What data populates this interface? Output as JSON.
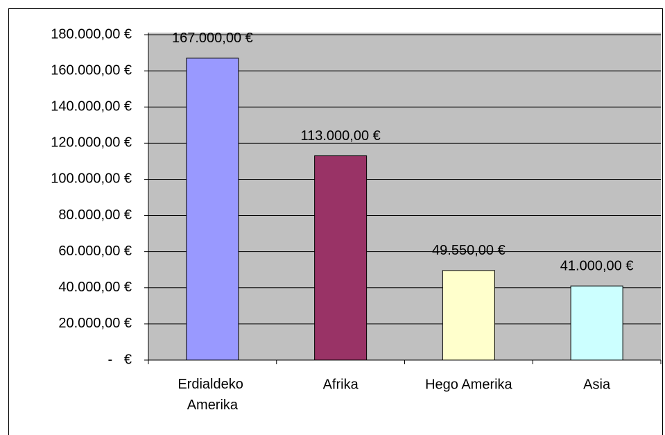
{
  "chart_data": {
    "type": "bar",
    "categories": [
      "Erdialdeko Amerika",
      "Afrika",
      "Hego Amerika",
      "Asia"
    ],
    "values": [
      167000,
      113000,
      49550,
      41000
    ],
    "value_labels": [
      "167.000,00 €",
      "113.000,00 €",
      "49.550,00 €",
      "41.000,00 €"
    ],
    "colors": [
      "#9999ff",
      "#993366",
      "#ffffcc",
      "#ccffff"
    ],
    "ylim": [
      0,
      180000
    ],
    "yticks": [
      {
        "value": 0,
        "label": "-   €"
      },
      {
        "value": 20000,
        "label": "20.000,00 €"
      },
      {
        "value": 40000,
        "label": "40.000,00 €"
      },
      {
        "value": 60000,
        "label": "60.000,00 €"
      },
      {
        "value": 80000,
        "label": "80.000,00 €"
      },
      {
        "value": 100000,
        "label": "100.000,00 €"
      },
      {
        "value": 120000,
        "label": "120.000,00 €"
      },
      {
        "value": 140000,
        "label": "140.000,00 €"
      },
      {
        "value": 160000,
        "label": "160.000,00 €"
      },
      {
        "value": 180000,
        "label": "180.000,00 €"
      }
    ],
    "grid": true
  }
}
